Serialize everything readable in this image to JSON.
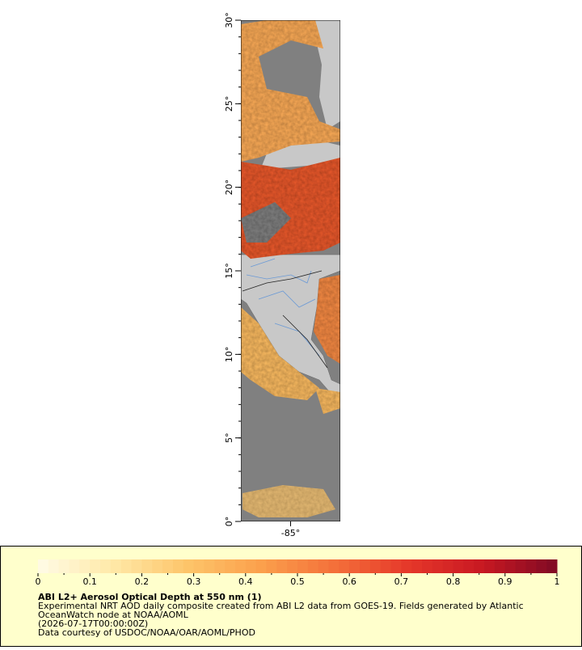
{
  "map": {
    "lat_lim": [
      0,
      30
    ],
    "lon_lim": [
      -88,
      -82
    ],
    "lat_ticks": [
      {
        "value": 0,
        "label": "0°"
      },
      {
        "value": 5,
        "label": "5°"
      },
      {
        "value": 10,
        "label": "10°"
      },
      {
        "value": 15,
        "label": "15°"
      },
      {
        "value": 20,
        "label": "20°"
      },
      {
        "value": 25,
        "label": "25°"
      },
      {
        "value": 30,
        "label": "30°"
      }
    ],
    "lon_ticks": [
      {
        "value": -85,
        "label": "-85°"
      }
    ]
  },
  "legend": {
    "colorbar": {
      "lim": [
        0,
        1
      ],
      "ticks": [
        0,
        0.1,
        0.2,
        0.3,
        0.4,
        0.5,
        0.6,
        0.7,
        0.8,
        0.9,
        1
      ],
      "colors": [
        "#fffbe6",
        "#ffe9a8",
        "#fdc56a",
        "#fba04c",
        "#f4703a",
        "#e5372a",
        "#c81822",
        "#7f0a24"
      ]
    },
    "title": "ABI L2+ Aerosol Optical Depth at 550 nm (1)",
    "lines": [
      "Experimental NRT AOD daily composite created from ABI L2 data from GOES-19. Fields generated by Atlantic",
      "OceanWatch node at NOAA/AOML",
      "(2026-07-17T00:00:00Z)",
      "Data courtesy of USDOC/NOAA/OAR/AOML/PHOD"
    ]
  }
}
